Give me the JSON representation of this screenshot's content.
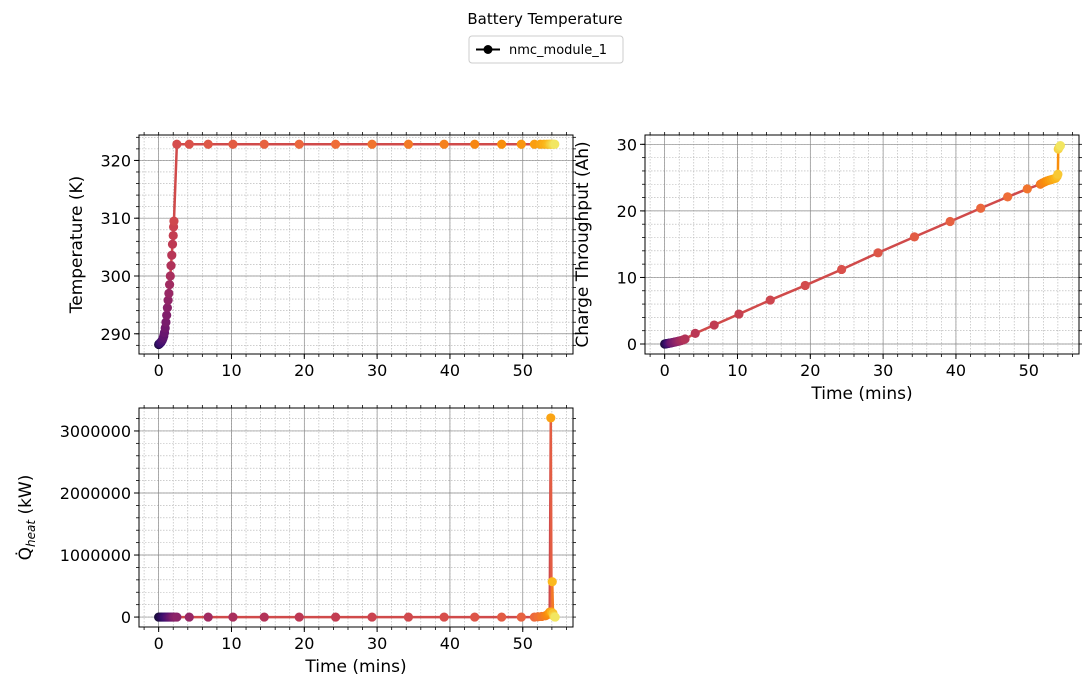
{
  "figure": {
    "title": "Battery Temperature",
    "legend": {
      "label": "nmc_module_1",
      "line_color": "#000000",
      "placement": "top-center"
    },
    "gradient_colors": [
      "#1a0c3c",
      "#3b0f6f",
      "#6a176e",
      "#932667",
      "#bb3754",
      "#d84f4b",
      "#ee6b3b",
      "#f98c0a",
      "#fbb61a",
      "#f2e661"
    ]
  },
  "chart_data": [
    {
      "type": "line",
      "panel": "top-left",
      "xlabel": "",
      "ylabel": "Temperature (K)",
      "xlim": [
        -2.7,
        56.9
      ],
      "ylim": [
        286.5,
        324.4
      ],
      "xticks": [
        0,
        10,
        20,
        30,
        40,
        50
      ],
      "yticks": [
        290,
        300,
        310,
        320
      ],
      "grid": true,
      "line_color": "#d04a4a",
      "points": [
        [
          0.0,
          288.15
        ],
        [
          0.05,
          288.2
        ],
        [
          0.1,
          288.25
        ],
        [
          0.15,
          288.3
        ],
        [
          0.2,
          288.4
        ],
        [
          0.3,
          288.5
        ],
        [
          0.4,
          288.7
        ],
        [
          0.5,
          288.9
        ],
        [
          0.6,
          289.2
        ],
        [
          0.7,
          289.6
        ],
        [
          0.8,
          290.2
        ],
        [
          0.9,
          291.0
        ],
        [
          1.0,
          292.0
        ],
        [
          1.1,
          293.2
        ],
        [
          1.2,
          294.5
        ],
        [
          1.3,
          295.8
        ],
        [
          1.4,
          297.0
        ],
        [
          1.5,
          298.5
        ],
        [
          1.6,
          300.0
        ],
        [
          1.7,
          301.8
        ],
        [
          1.8,
          303.6
        ],
        [
          1.9,
          305.5
        ],
        [
          2.0,
          307.0
        ],
        [
          2.05,
          308.5
        ],
        [
          2.1,
          309.5
        ],
        [
          2.5,
          322.8
        ],
        [
          4.2,
          322.8
        ],
        [
          6.8,
          322.8
        ],
        [
          10.2,
          322.8
        ],
        [
          14.5,
          322.8
        ],
        [
          19.3,
          322.8
        ],
        [
          24.3,
          322.8
        ],
        [
          29.3,
          322.8
        ],
        [
          34.3,
          322.8
        ],
        [
          39.2,
          322.8
        ],
        [
          43.4,
          322.8
        ],
        [
          47.1,
          322.8
        ],
        [
          49.8,
          322.8
        ],
        [
          51.6,
          322.8
        ],
        [
          52.4,
          322.8
        ],
        [
          52.9,
          322.8
        ],
        [
          53.3,
          322.8
        ],
        [
          53.6,
          322.8
        ],
        [
          53.8,
          322.8
        ],
        [
          54.0,
          322.8
        ],
        [
          54.2,
          322.8
        ],
        [
          54.4,
          322.8
        ]
      ]
    },
    {
      "type": "line",
      "panel": "top-right",
      "xlabel": "Time (mins)",
      "ylabel": "Charge Throughput (Ah)",
      "xlim": [
        -2.7,
        56.9
      ],
      "ylim": [
        -1.5,
        31.4
      ],
      "xticks": [
        0,
        10,
        20,
        30,
        40,
        50
      ],
      "yticks": [
        0,
        10,
        20,
        30
      ],
      "grid": true,
      "line_color": "#d04a4a",
      "points": [
        [
          0.0,
          0.0
        ],
        [
          0.1,
          0.02
        ],
        [
          0.2,
          0.04
        ],
        [
          0.3,
          0.06
        ],
        [
          0.4,
          0.08
        ],
        [
          0.5,
          0.1
        ],
        [
          0.6,
          0.12
        ],
        [
          0.7,
          0.14
        ],
        [
          0.8,
          0.16
        ],
        [
          0.9,
          0.18
        ],
        [
          1.0,
          0.2
        ],
        [
          1.2,
          0.25
        ],
        [
          1.4,
          0.3
        ],
        [
          1.6,
          0.35
        ],
        [
          1.8,
          0.4
        ],
        [
          2.0,
          0.45
        ],
        [
          2.2,
          0.5
        ],
        [
          2.5,
          0.6
        ],
        [
          2.8,
          0.75
        ],
        [
          4.2,
          1.6
        ],
        [
          6.8,
          2.85
        ],
        [
          10.2,
          4.5
        ],
        [
          14.5,
          6.6
        ],
        [
          19.3,
          8.8
        ],
        [
          24.3,
          11.2
        ],
        [
          29.3,
          13.7
        ],
        [
          34.3,
          16.1
        ],
        [
          39.2,
          18.4
        ],
        [
          43.4,
          20.4
        ],
        [
          47.1,
          22.1
        ],
        [
          49.8,
          23.3
        ],
        [
          51.6,
          24.0
        ],
        [
          51.9,
          24.2
        ],
        [
          52.2,
          24.35
        ],
        [
          52.5,
          24.5
        ],
        [
          52.8,
          24.6
        ],
        [
          53.1,
          24.7
        ],
        [
          53.4,
          24.8
        ],
        [
          53.7,
          24.9
        ],
        [
          53.9,
          25.2
        ],
        [
          54.0,
          25.5
        ],
        [
          54.05,
          29.3
        ],
        [
          54.2,
          29.6
        ],
        [
          54.35,
          29.8
        ]
      ]
    },
    {
      "type": "line",
      "panel": "bottom-left",
      "xlabel": "Time (mins)",
      "ylabel": "Q̇heat (kW)",
      "ylabel_main": "Q̇",
      "ylabel_sub": "heat",
      "ylabel_unit": " (kW)",
      "xlim": [
        -2.7,
        56.9
      ],
      "ylim": [
        -160000,
        3370000
      ],
      "xticks": [
        0,
        10,
        20,
        30,
        40,
        50
      ],
      "yticks": [
        0,
        1000000,
        2000000,
        3000000
      ],
      "ytick_labels": [
        "0",
        "1000000",
        "2000000",
        "3000000"
      ],
      "grid": true,
      "line_color": "#d04a4a",
      "points": [
        [
          0.0,
          0
        ],
        [
          0.2,
          0
        ],
        [
          0.4,
          0
        ],
        [
          0.6,
          0
        ],
        [
          0.8,
          0
        ],
        [
          1.0,
          0
        ],
        [
          1.2,
          0
        ],
        [
          1.4,
          0
        ],
        [
          1.6,
          0
        ],
        [
          1.8,
          0
        ],
        [
          2.0,
          0
        ],
        [
          2.2,
          0
        ],
        [
          2.5,
          0
        ],
        [
          4.2,
          0
        ],
        [
          6.8,
          0
        ],
        [
          10.2,
          0
        ],
        [
          14.5,
          0
        ],
        [
          19.3,
          0
        ],
        [
          24.3,
          0
        ],
        [
          29.3,
          0
        ],
        [
          34.3,
          0
        ],
        [
          39.2,
          0
        ],
        [
          43.4,
          0
        ],
        [
          47.1,
          0
        ],
        [
          49.8,
          0
        ],
        [
          51.6,
          0
        ],
        [
          52.1,
          5000
        ],
        [
          52.6,
          10000
        ],
        [
          53.1,
          20000
        ],
        [
          53.4,
          40000
        ],
        [
          53.6,
          60000
        ],
        [
          53.7,
          80000
        ],
        [
          53.85,
          3210000
        ],
        [
          53.95,
          80000
        ],
        [
          54.05,
          570000
        ],
        [
          54.15,
          60000
        ],
        [
          54.25,
          20000
        ],
        [
          54.35,
          5000
        ],
        [
          54.45,
          0
        ]
      ]
    }
  ]
}
